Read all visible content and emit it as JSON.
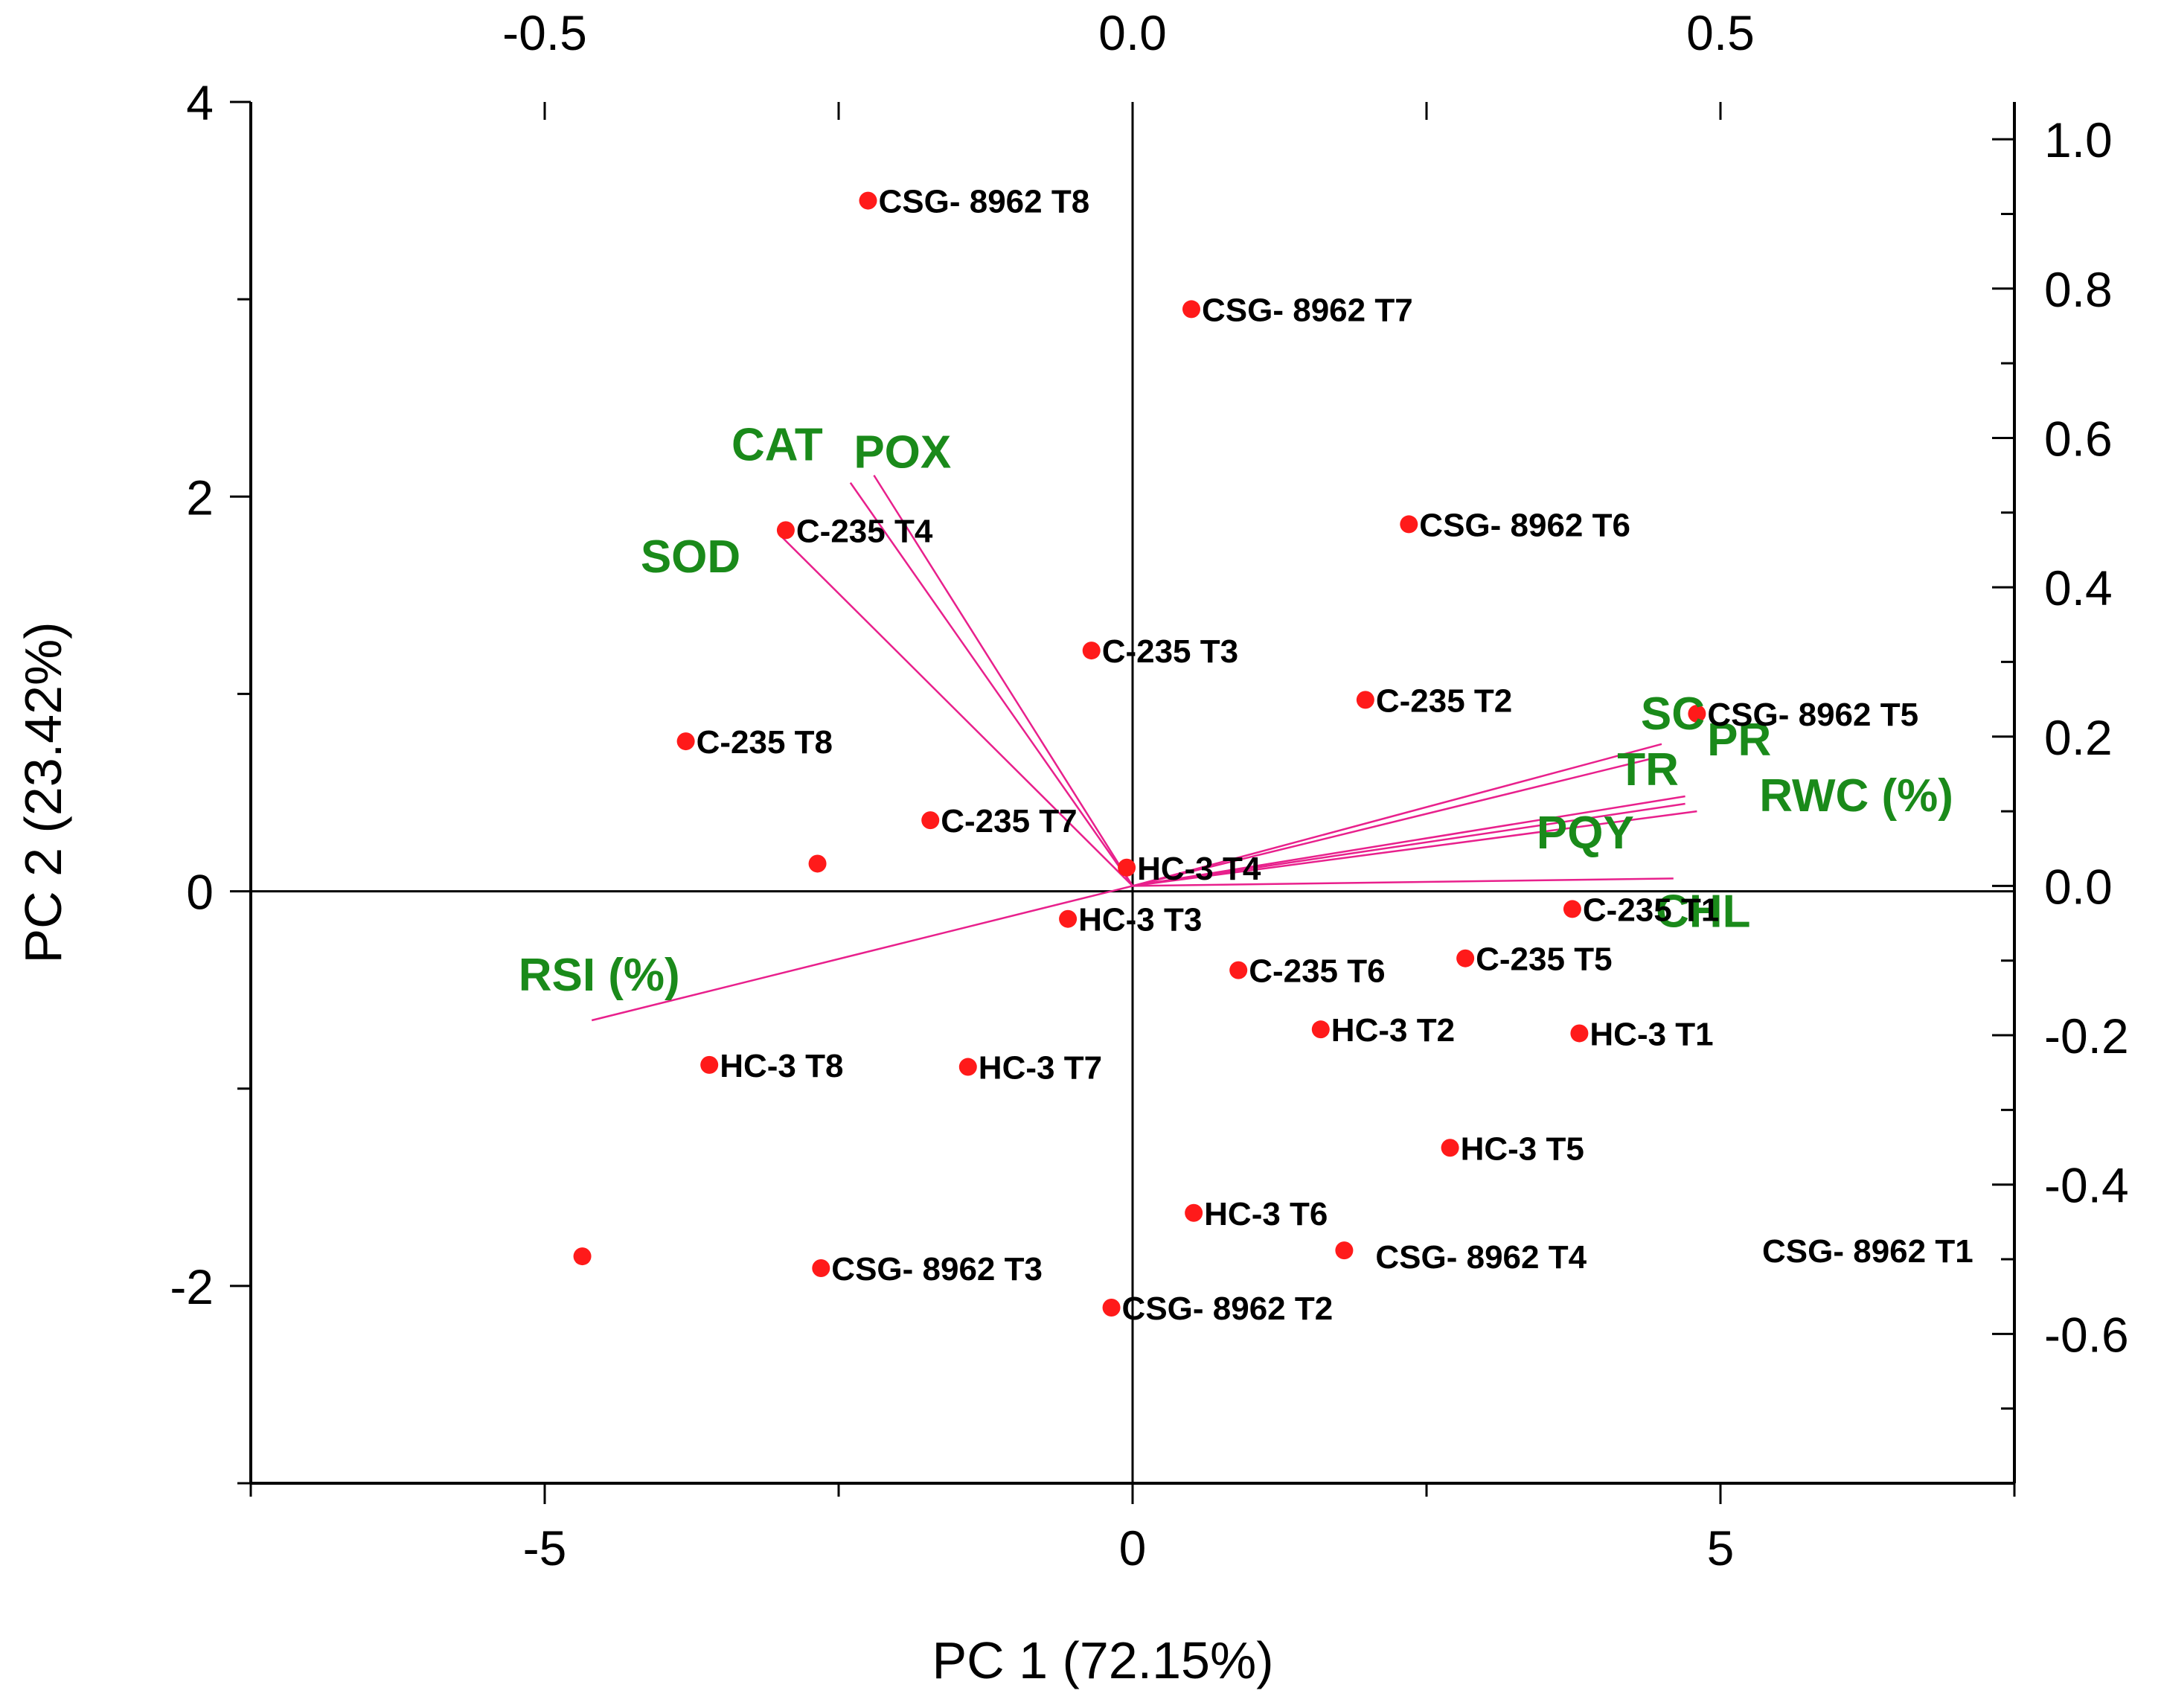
{
  "chart_data": {
    "type": "scatter",
    "subtype": "biplot",
    "title": "",
    "xlabel": "PC 1 (72.15%)",
    "ylabel": "PC 2 (23.42%)",
    "xlim": [
      -7.5,
      7.5
    ],
    "ylim": [
      -3,
      4
    ],
    "xticks": [
      -5,
      0,
      5
    ],
    "yticks": [
      -2,
      0,
      2,
      4
    ],
    "top_axis": {
      "range": [
        -0.75,
        0.75
      ],
      "ticks": [
        "-0.5",
        "0.0",
        "0.5"
      ],
      "tick_values": [
        -0.5,
        0.0,
        0.5
      ]
    },
    "right_axis": {
      "range": [
        -0.8,
        1.05
      ],
      "ticks": [
        "1.0",
        "0.8",
        "0.6",
        "0.4",
        "0.2",
        "0.0",
        "-0.2",
        "-0.4",
        "-0.6"
      ],
      "tick_values": [
        1.0,
        0.8,
        0.6,
        0.4,
        0.2,
        0.0,
        -0.2,
        -0.4,
        -0.6
      ]
    },
    "colors": {
      "points": "#ff1a1a",
      "vectors": "#e8208c",
      "loading_labels": "#1a8a1a",
      "axes": "#000000"
    },
    "points": [
      {
        "label": "CSG- 8962 T8",
        "x": -2.25,
        "y": 3.5
      },
      {
        "label": "CSG- 8962 T7",
        "x": 0.5,
        "y": 2.95
      },
      {
        "label": "C-235 T4",
        "x": -2.95,
        "y": 1.83
      },
      {
        "label": "CSG- 8962 T6",
        "x": 2.35,
        "y": 1.86
      },
      {
        "label": "C-235 T3",
        "x": -0.35,
        "y": 1.22
      },
      {
        "label": "C-235 T2",
        "x": 1.98,
        "y": 0.97
      },
      {
        "label": "CSG- 8962 T5",
        "x": 4.8,
        "y": 0.9
      },
      {
        "label": "C-235 T8",
        "x": -3.8,
        "y": 0.76
      },
      {
        "label": "C-235 T7",
        "x": -1.72,
        "y": 0.36
      },
      {
        "label": "",
        "x": -2.68,
        "y": 0.14
      },
      {
        "label": "HC-3 T4",
        "x": -0.05,
        "y": 0.12
      },
      {
        "label": "HC-3 T3",
        "x": -0.55,
        "y": -0.14
      },
      {
        "label": "C-235 T1",
        "x": 3.74,
        "y": -0.09
      },
      {
        "label": "C-235 T6",
        "x": 0.9,
        "y": -0.4
      },
      {
        "label": "C-235 T5",
        "x": 2.83,
        "y": -0.34
      },
      {
        "label": "HC-3 T2",
        "x": 1.6,
        "y": -0.7
      },
      {
        "label": "HC-3 T1",
        "x": 3.8,
        "y": -0.72
      },
      {
        "label": "HC-3 T8",
        "x": -3.6,
        "y": -0.88
      },
      {
        "label": "HC-3 T7",
        "x": -1.4,
        "y": -0.89
      },
      {
        "label": "HC-3 T5",
        "x": 2.7,
        "y": -1.3
      },
      {
        "label": "HC-3 T6",
        "x": 0.52,
        "y": -1.63
      },
      {
        "label": "CSG- 8962 T4",
        "x": 1.8,
        "y": -1.82
      },
      {
        "label": "CSG- 8962 T1",
        "x": null,
        "y": null
      },
      {
        "label": "",
        "x": -4.68,
        "y": -1.85
      },
      {
        "label": "CSG- 8962 T3",
        "x": -2.65,
        "y": -1.91
      },
      {
        "label": "CSG- 8962 T2",
        "x": -0.18,
        "y": -2.11
      }
    ],
    "loadings": [
      {
        "label": "CAT",
        "x": -0.22,
        "y": 0.55
      },
      {
        "label": "POX",
        "x": -0.24,
        "y": 0.54
      },
      {
        "label": "SOD",
        "x": -0.3,
        "y": 0.47
      },
      {
        "label": "SC",
        "x": 0.45,
        "y": 0.19
      },
      {
        "label": "PR",
        "x": 0.44,
        "y": 0.17
      },
      {
        "label": "TR",
        "x": 0.47,
        "y": 0.12
      },
      {
        "label": "RWC (%)",
        "x": 0.47,
        "y": 0.11
      },
      {
        "label": "PQY",
        "x": 0.48,
        "y": 0.1
      },
      {
        "label": "CHL",
        "x": 0.46,
        "y": 0.01
      },
      {
        "label": "RSI (%)",
        "x": -0.46,
        "y": -0.18
      }
    ]
  }
}
